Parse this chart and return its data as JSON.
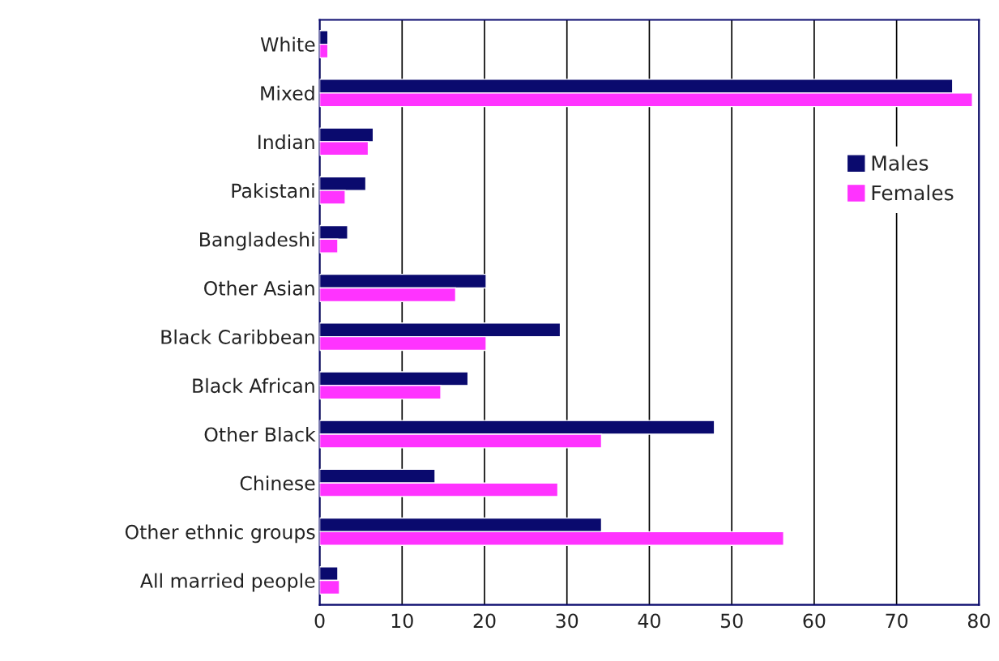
{
  "chart_data": {
    "type": "bar",
    "orientation": "horizontal",
    "categories": [
      "White",
      "Mixed",
      "Indian",
      "Pakistani",
      "Bangladeshi",
      "Other Asian",
      "Black Caribbean",
      "Black African",
      "Other Black",
      "Chinese",
      "Other ethnic groups",
      "All married people"
    ],
    "series": [
      {
        "name": "Males",
        "color": "#0a0a6e",
        "values": [
          1.0,
          76.8,
          6.5,
          5.6,
          3.4,
          20.2,
          29.2,
          18.0,
          47.9,
          14.0,
          34.2,
          2.2
        ]
      },
      {
        "name": "Females",
        "color": "#ff33ff",
        "values": [
          1.0,
          79.2,
          5.9,
          3.1,
          2.2,
          16.5,
          20.2,
          14.7,
          34.2,
          28.9,
          56.3,
          2.4
        ]
      }
    ],
    "xlim": [
      0,
      80
    ],
    "xticks": [
      0,
      10,
      20,
      30,
      40,
      50,
      60,
      70,
      80
    ],
    "grid": "x",
    "legend": "top right"
  }
}
